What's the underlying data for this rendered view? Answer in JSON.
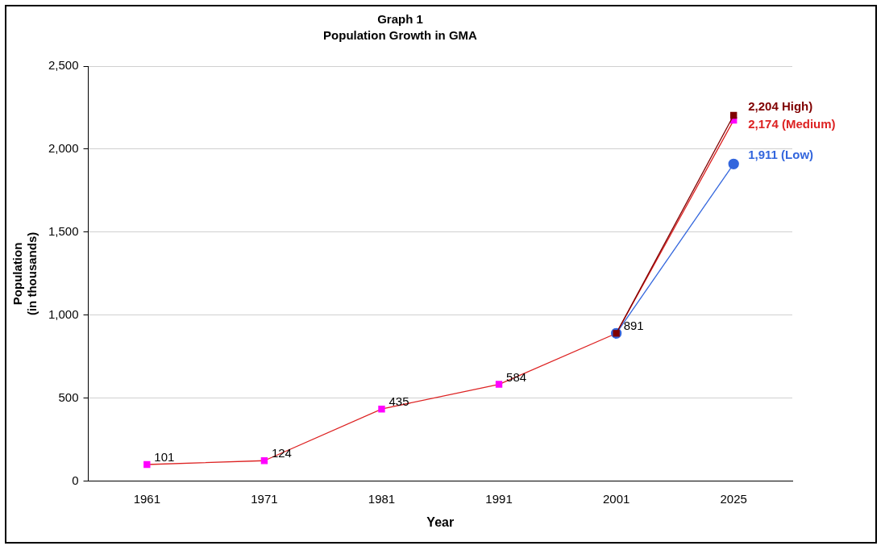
{
  "chart_data": {
    "type": "line",
    "title": "Graph 1",
    "subtitle": "Population Growth in GMA",
    "xlabel": "Year",
    "ylabel": "Population\n(in thousands)",
    "categories": [
      "1961",
      "1971",
      "1981",
      "1991",
      "2001",
      "2025"
    ],
    "series": [
      {
        "color": "#800000",
        "colors": [
          "#800000",
          "#800000",
          "#800000",
          "#800000",
          "#800000",
          "#800000"
        ],
        "marker": "square",
        "values": [
          null,
          null,
          null,
          null,
          891,
          2204
        ],
        "value_labels": [
          null,
          null,
          null,
          null,
          null,
          "2,204 High)"
        ]
      },
      {
        "color": "#3366dd",
        "colors": [
          "#3366dd",
          "#3366dd",
          "#3366dd",
          "#3366dd",
          "#3366dd",
          "#3366dd"
        ],
        "marker": "circle",
        "values": [
          null,
          null,
          null,
          null,
          891,
          1911
        ],
        "value_labels": [
          null,
          null,
          null,
          null,
          null,
          "1,911 (Low)"
        ]
      },
      {
        "color": "#dd2222",
        "colors": [
          "#ff00ff",
          "#ff00ff",
          "#ff00ff",
          "#ff00ff",
          "#ff00ff",
          "#ff00ff"
        ],
        "marker": "square",
        "values": [
          101,
          124,
          435,
          584,
          891,
          2174
        ],
        "value_labels": [
          "101",
          "124",
          "435",
          "584",
          "891",
          "2,174 (Medium)"
        ]
      }
    ],
    "ylim": [
      0,
      2500
    ],
    "yticks": [
      0,
      {
        "value": 500,
        "label": "500"
      },
      {
        "value": 1000,
        "label": "1,000"
      },
      {
        "value": 1500,
        "label": "1,500"
      },
      {
        "value": 2000,
        "label": "2,000"
      },
      {
        "value": 2500,
        "label": "2,500"
      }
    ],
    "grid": "y",
    "legend": false
  }
}
